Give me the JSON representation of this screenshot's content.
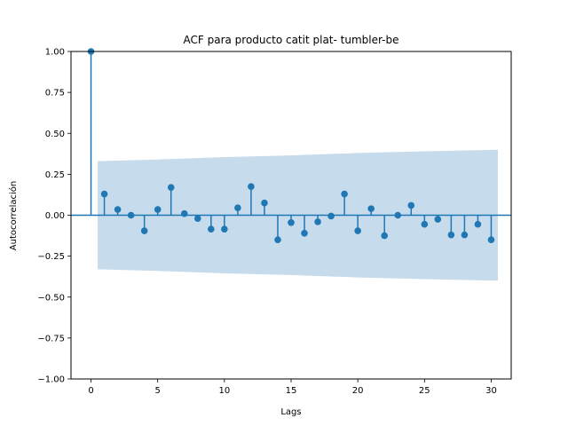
{
  "chart_data": {
    "type": "stem",
    "title": "ACF para producto catit plat- tumbler-be",
    "xlabel": "Lags",
    "ylabel": "Autocorrelación",
    "xlim": [
      -1.5,
      31.5
    ],
    "ylim": [
      -1.0,
      1.0
    ],
    "x_ticks": [
      0,
      5,
      10,
      15,
      20,
      25,
      30
    ],
    "x_tick_labels": [
      "0",
      "5",
      "10",
      "15",
      "20",
      "25",
      "30"
    ],
    "y_ticks": [
      -1.0,
      -0.75,
      -0.5,
      -0.25,
      0.0,
      0.25,
      0.5,
      0.75,
      1.0
    ],
    "y_tick_labels": [
      "−1.00",
      "−0.75",
      "−0.50",
      "−0.25",
      "0.00",
      "0.25",
      "0.50",
      "0.75",
      "1.00"
    ],
    "series": [
      {
        "lags": [
          0,
          1,
          2,
          3,
          4,
          5,
          6,
          7,
          8,
          9,
          10,
          11,
          12,
          13,
          14,
          15,
          16,
          17,
          18,
          19,
          20,
          21,
          22,
          23,
          24,
          25,
          26,
          27,
          28,
          29,
          30
        ],
        "values": [
          1.0,
          0.13,
          0.035,
          0.0,
          -0.095,
          0.035,
          0.17,
          0.01,
          -0.02,
          -0.085,
          -0.085,
          0.045,
          0.175,
          0.075,
          -0.15,
          -0.045,
          -0.11,
          -0.04,
          -0.005,
          0.13,
          -0.095,
          0.04,
          -0.125,
          0.0,
          0.06,
          -0.055,
          -0.025,
          -0.12,
          -0.12,
          -0.055,
          -0.15
        ]
      }
    ],
    "confidence_band": {
      "x": [
        0.5,
        5,
        10,
        15,
        20,
        25,
        30.5
      ],
      "upper": [
        0.33,
        0.34,
        0.355,
        0.365,
        0.38,
        0.39,
        0.4
      ],
      "lower": [
        -0.33,
        -0.34,
        -0.355,
        -0.365,
        -0.38,
        -0.39,
        -0.4
      ]
    },
    "colors": {
      "stem": "#1f77b4",
      "band": "#c6dbec",
      "zero_line": "#1f77b4"
    },
    "grid": false,
    "legend": "none"
  }
}
